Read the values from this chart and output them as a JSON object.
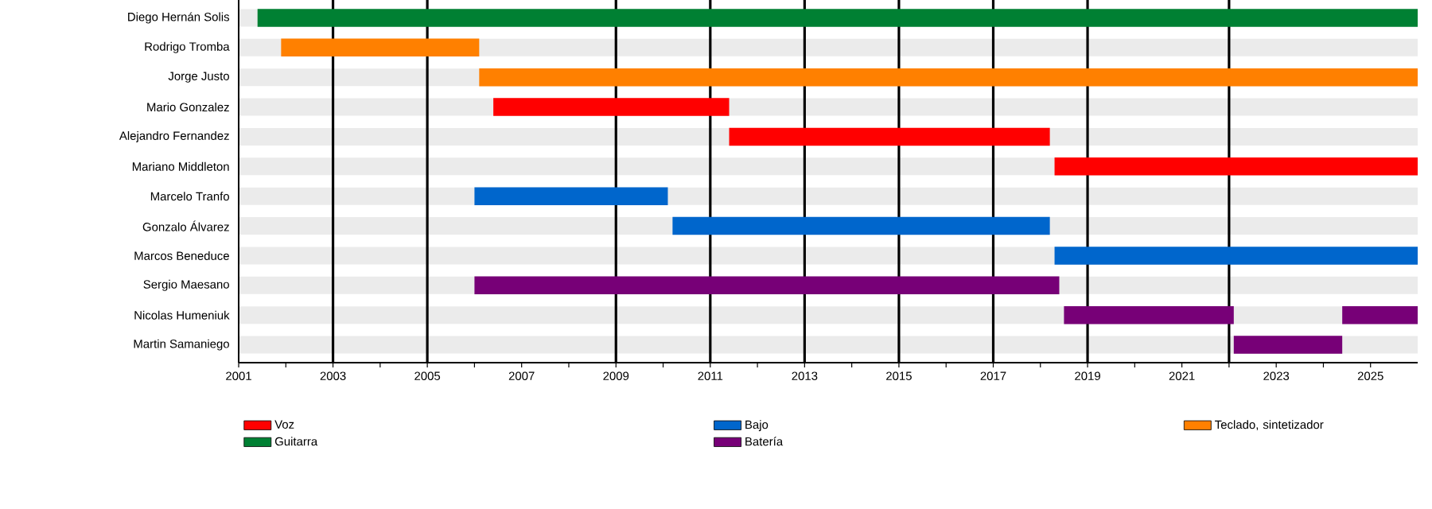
{
  "chart_data": {
    "type": "bar",
    "orientation": "horizontal",
    "categories": [
      "Diego Hernán Solis",
      "Rodrigo Tromba",
      "Jorge Justo",
      "Mario Gonzalez",
      "Alejandro Fernandez",
      "Mariano Middleton",
      "Marcelo Tranfo",
      "Gonzalo Álvarez",
      "Marcos Beneduce",
      "Sergio Maesano",
      "Nicolas Humeniuk",
      "Martin Samaniego"
    ],
    "series": [
      {
        "name": "Voz",
        "color": "#ff0000",
        "base": [
          null,
          null,
          null,
          2006.4,
          2011.4,
          2018.3,
          null,
          null,
          null,
          null,
          null,
          null
        ],
        "values": [
          null,
          null,
          null,
          5.0,
          6.8,
          7.7,
          null,
          null,
          null,
          null,
          null,
          null
        ]
      },
      {
        "name": "Guitarra",
        "color": "#008033",
        "base": [
          2001.4,
          null,
          null,
          null,
          null,
          null,
          null,
          null,
          null,
          null,
          null,
          null
        ],
        "values": [
          24.6,
          null,
          null,
          null,
          null,
          null,
          null,
          null,
          null,
          null,
          null,
          null
        ]
      },
      {
        "name": "Bajo",
        "color": "#0066cc",
        "base": [
          null,
          null,
          null,
          null,
          null,
          null,
          2006.0,
          2010.2,
          2018.3,
          null,
          null,
          null
        ],
        "values": [
          null,
          null,
          null,
          null,
          null,
          null,
          4.1,
          8.0,
          7.7,
          null,
          null,
          null
        ]
      },
      {
        "name": "Batería",
        "color": "#770077",
        "base": [
          null,
          null,
          null,
          null,
          null,
          null,
          null,
          null,
          null,
          2006.0,
          2018.5,
          2022.1
        ],
        "values": [
          null,
          null,
          null,
          null,
          null,
          null,
          null,
          null,
          null,
          12.4,
          3.6,
          2.3
        ]
      },
      {
        "name": "Teclado, sintetizador",
        "color": "#ff8000",
        "base": [
          null,
          2001.9,
          2006.1,
          null,
          null,
          null,
          null,
          null,
          null,
          null,
          null,
          null
        ],
        "values": [
          null,
          4.2,
          19.9,
          null,
          null,
          null,
          null,
          null,
          null,
          null,
          null,
          null
        ]
      },
      {
        "color": "#770077",
        "base": [
          null,
          null,
          null,
          null,
          null,
          null,
          null,
          null,
          null,
          null,
          2024.4,
          null
        ],
        "values": [
          null,
          null,
          null,
          null,
          null,
          null,
          null,
          null,
          null,
          null,
          1.6,
          null
        ]
      }
    ],
    "xlim": [
      2001,
      2026
    ],
    "xticks": [
      2001,
      {
        "value": 2002,
        "label": null
      },
      2003,
      {
        "value": 2004,
        "label": null
      },
      2005,
      {
        "value": 2006,
        "label": null
      },
      2007,
      {
        "value": 2008,
        "label": null
      },
      2009,
      {
        "value": 2010,
        "label": null
      },
      2011,
      {
        "value": 2012,
        "label": null
      },
      2013,
      {
        "value": 2014,
        "label": null
      },
      2015,
      {
        "value": 2016,
        "label": null
      },
      2017,
      {
        "value": 2018,
        "label": null
      },
      2019,
      {
        "value": 2020,
        "label": null
      },
      2021,
      {
        "value": 2022,
        "label": null
      },
      2023,
      {
        "value": 2024,
        "label": null
      },
      2025
    ],
    "ref_lines": [
      {
        "axis": "x",
        "value": 2003,
        "color": "#000000"
      },
      {
        "axis": "x",
        "value": 2005,
        "color": "#000000"
      },
      {
        "axis": "x",
        "value": 2009,
        "color": "#000000"
      },
      {
        "axis": "x",
        "value": 2011,
        "color": "#000000"
      },
      {
        "axis": "x",
        "value": 2013,
        "color": "#000000"
      },
      {
        "axis": "x",
        "value": 2015,
        "color": "#000000"
      },
      {
        "axis": "x",
        "value": 2017,
        "color": "#000000"
      },
      {
        "axis": "x",
        "value": 2019,
        "color": "#000000"
      },
      {
        "axis": "x",
        "value": 2022,
        "color": "#000000"
      }
    ],
    "grid": "y",
    "legend": "bottom"
  }
}
